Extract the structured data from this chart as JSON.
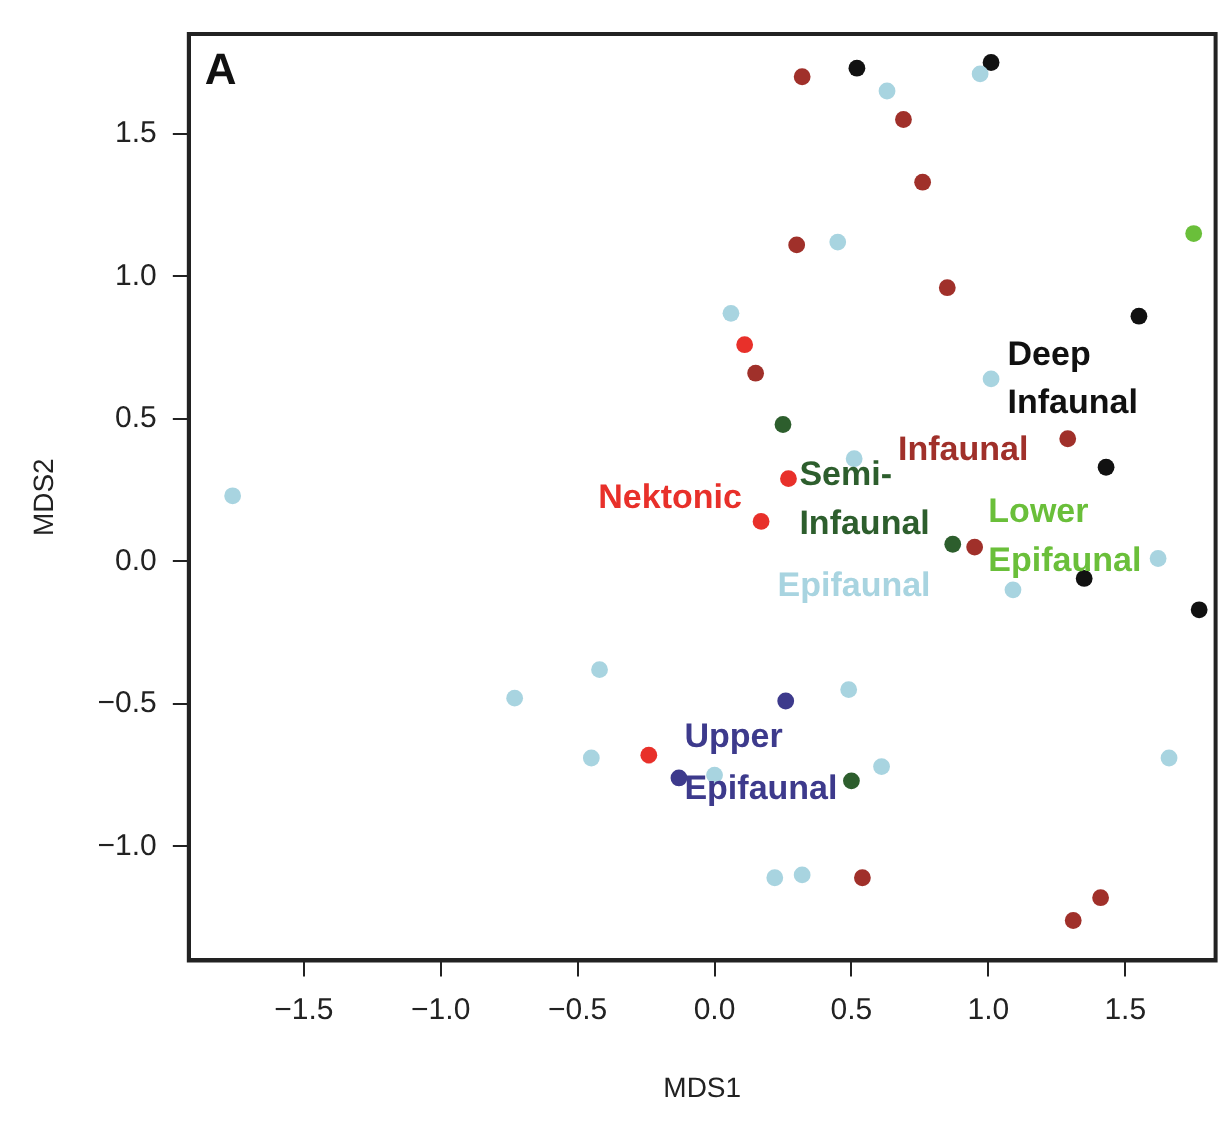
{
  "chart_data": {
    "type": "scatter",
    "title": "A",
    "xlabel": "MDS1",
    "ylabel": "MDS2",
    "legend": false,
    "grid": false,
    "marker": "circle",
    "xlim": [
      -1.92,
      1.83
    ],
    "ylim": [
      -1.4,
      1.85
    ],
    "xticks": [
      {
        "value": -1.5,
        "label": "−1.5"
      },
      {
        "value": -1.0,
        "label": "−1.0"
      },
      {
        "value": -0.5,
        "label": "−0.5"
      },
      {
        "value": 0,
        "label": "0.0"
      },
      {
        "value": 0.5,
        "label": "0.5"
      },
      {
        "value": 1.0,
        "label": "1.0"
      },
      {
        "value": 1.5,
        "label": "1.5"
      }
    ],
    "yticks": [
      {
        "value": -1.0,
        "label": "−1.0"
      },
      {
        "value": -0.5,
        "label": "−0.5"
      },
      {
        "value": 0,
        "label": "0.0"
      },
      {
        "value": 0.5,
        "label": "0.5"
      },
      {
        "value": 1.0,
        "label": "1.0"
      },
      {
        "value": 1.5,
        "label": "1.5"
      }
    ],
    "series": [
      {
        "name": "Epifaunal",
        "color": "#a8d4e0",
        "x": [
          -1.76,
          0.63,
          0.97,
          0.45,
          0.06,
          1.01,
          0.51,
          1.09,
          1.62,
          -0.73,
          -0.42,
          -0.45,
          0.49,
          0.0,
          0.61,
          1.66,
          0.22,
          0.32
        ],
        "values": [
          0.23,
          1.65,
          1.71,
          1.12,
          0.87,
          0.64,
          0.36,
          -0.1,
          0.01,
          -0.48,
          -0.38,
          -0.69,
          -0.45,
          -0.75,
          -0.72,
          -0.69,
          -1.11,
          -1.1
        ]
      },
      {
        "name": "Infaunal",
        "color": "#a0302a",
        "x": [
          0.32,
          0.69,
          0.76,
          0.3,
          0.85,
          0.15,
          1.29,
          0.95,
          0.54,
          1.41,
          1.31
        ],
        "values": [
          1.7,
          1.55,
          1.33,
          1.11,
          0.96,
          0.66,
          0.43,
          0.05,
          -1.11,
          -1.18,
          -1.26
        ]
      },
      {
        "name": "Deep Infaunal",
        "color": "#111111",
        "x": [
          0.52,
          1.01,
          1.55,
          1.43,
          1.35,
          1.77
        ],
        "values": [
          1.73,
          1.75,
          0.86,
          0.33,
          -0.06,
          -0.17
        ]
      },
      {
        "name": "Nektonic",
        "color": "#e8302a",
        "x": [
          0.11,
          0.27,
          0.17,
          -0.24
        ],
        "values": [
          0.76,
          0.29,
          0.14,
          -0.68
        ]
      },
      {
        "name": "Semi-Infaunal",
        "color": "#2d5e2d",
        "x": [
          0.25,
          0.87,
          0.5
        ],
        "values": [
          0.48,
          0.06,
          -0.77
        ]
      },
      {
        "name": "Lower Epifaunal",
        "color": "#6abf3a",
        "x": [
          1.75
        ],
        "values": [
          1.15
        ]
      },
      {
        "name": "Upper Epifaunal",
        "color": "#3d3a8c",
        "x": [
          0.26,
          -0.13
        ],
        "values": [
          -0.49,
          -0.76
        ]
      }
    ]
  }
}
